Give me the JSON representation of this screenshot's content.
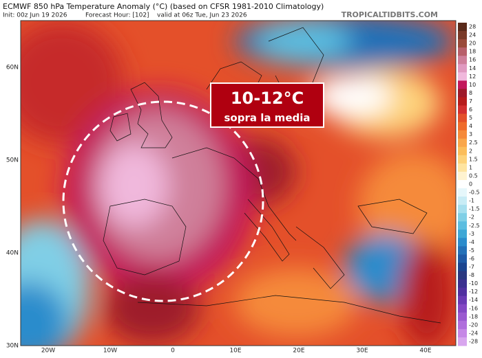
{
  "header": {
    "title": "ECMWF 850 hPa Temperature Anomaly (°C) (based on CFSR 1981-2010 Climatology)",
    "init": "Init: 00z Jun 19 2026",
    "forecast_hour": "Forecast Hour: [102]",
    "valid": "valid at 06z Tue, Jun 23 2026",
    "watermark": "TROPICALTIDBITS.COM"
  },
  "annotation": {
    "headline": "10-12°C",
    "subtitle": "sopra la media"
  },
  "map": {
    "lat_labels": [
      "60N",
      "50N",
      "40N",
      "30N"
    ],
    "lon_labels": [
      "20W",
      "10W",
      "0",
      "10E",
      "20E",
      "30E",
      "40E"
    ]
  },
  "colorbar": {
    "labels": [
      28,
      24,
      20,
      18,
      16,
      14,
      12,
      10,
      8,
      7,
      6,
      5,
      4,
      3,
      2.5,
      2,
      1.5,
      1,
      0.5,
      0,
      -0.5,
      -1,
      -1.5,
      -2,
      -2.5,
      -3,
      -4,
      -5,
      -6,
      -7,
      -8,
      -10,
      -12,
      -14,
      -16,
      -18,
      -20,
      -24,
      -28
    ],
    "colors": [
      "#5a2a1a",
      "#7a3a28",
      "#9a4a3a",
      "#b85f6a",
      "#cf7f9a",
      "#e09ac0",
      "#f0b8dc",
      "#c2185b",
      "#9e1a2a",
      "#b71c1c",
      "#d32f2f",
      "#e4502a",
      "#ef6c2c",
      "#f58a3a",
      "#f9a64a",
      "#fbbd5a",
      "#fdd27a",
      "#fee4a0",
      "#fff3d0",
      "#ffffff",
      "#e6f7fb",
      "#c8ecf5",
      "#a6dfee",
      "#80cfe6",
      "#5cbde0",
      "#3ea7d6",
      "#2b8ccc",
      "#2471b8",
      "#1f5aa6",
      "#1b4590",
      "#2a3880",
      "#3b3090",
      "#5030a0",
      "#6a3ab4",
      "#8448c4",
      "#9a5ad0",
      "#b06edc",
      "#c688e6",
      "#d8a6ee"
    ]
  }
}
